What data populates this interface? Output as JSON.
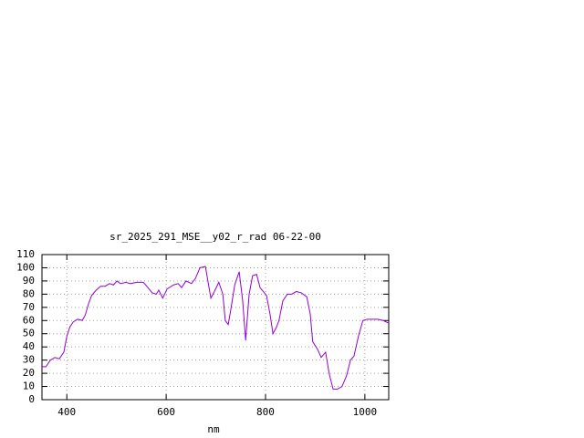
{
  "chart_data": {
    "type": "line",
    "title": "sr_2025_291_MSE__y02_r_rad 06-22-00",
    "x_label": "nm",
    "grid": true,
    "xlim": [
      350,
      1048
    ],
    "xticks": [
      400,
      600,
      800,
      1000
    ],
    "ylim": [
      0,
      110
    ],
    "yticks": [
      0,
      10,
      20,
      30,
      40,
      50,
      60,
      70,
      80,
      90,
      100,
      110
    ],
    "x": [
      350,
      358,
      367,
      376,
      385,
      394,
      400,
      406,
      413,
      422,
      431,
      437,
      444,
      450,
      459,
      468,
      477,
      486,
      494,
      501,
      508,
      519,
      528,
      541,
      554,
      561,
      572,
      580,
      585,
      593,
      602,
      615,
      624,
      631,
      640,
      651,
      659,
      668,
      679,
      684,
      690,
      697,
      706,
      714,
      719,
      725,
      730,
      738,
      747,
      754,
      760,
      767,
      774,
      782,
      789,
      802,
      809,
      815,
      822,
      827,
      835,
      844,
      853,
      862,
      872,
      883,
      890,
      895,
      905,
      912,
      921,
      928,
      936,
      945,
      954,
      963,
      971,
      978,
      987,
      996,
      1005,
      1015,
      1026,
      1037,
      1048
    ],
    "series": [
      {
        "color": "#9400d3",
        "values": [
          25,
          25,
          30,
          32,
          31,
          36,
          48,
          55,
          59,
          61,
          60,
          64,
          73,
          79,
          83,
          86,
          86,
          88,
          87,
          90,
          88,
          89,
          88,
          89,
          89,
          86,
          81,
          80,
          83,
          77,
          84,
          87,
          88,
          85,
          90,
          88,
          92,
          100,
          101,
          90,
          77,
          82,
          89,
          80,
          60,
          57,
          68,
          87,
          97,
          75,
          45,
          80,
          94,
          95,
          85,
          79,
          65,
          50,
          55,
          60,
          75,
          80,
          80,
          82,
          81,
          78,
          65,
          44,
          38,
          32,
          36,
          20,
          8,
          8,
          10,
          18,
          30,
          33,
          48,
          60,
          61,
          61,
          61,
          60,
          58
        ]
      }
    ]
  }
}
